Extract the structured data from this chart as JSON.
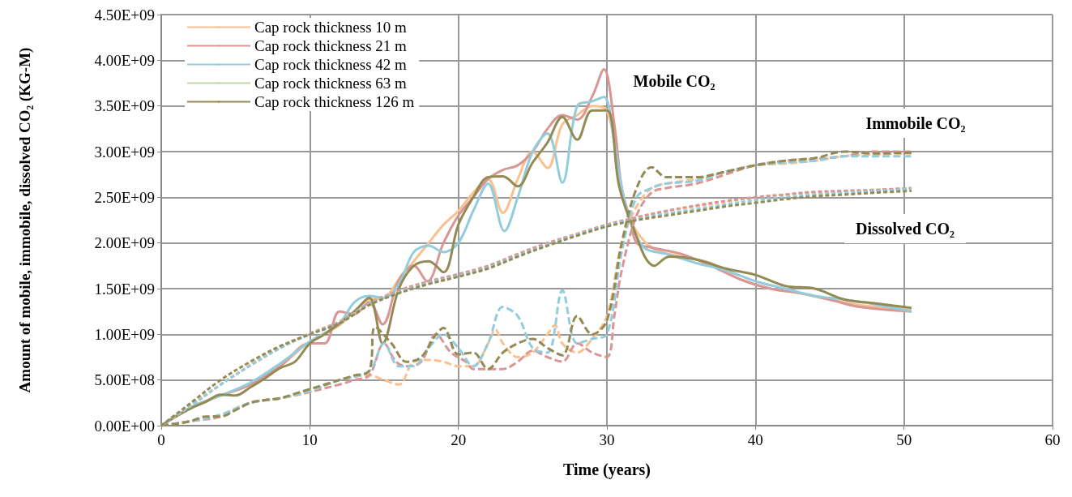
{
  "chart_data": {
    "type": "line",
    "xlabel": "Time (years)",
    "ylabel": "Amount of mobile, immobile, dissolved CO₂ (KG-M)",
    "xlim": [
      0,
      60
    ],
    "xticks": [
      0,
      10,
      20,
      30,
      40,
      50,
      60
    ],
    "ylim": [
      0,
      4500000000.0
    ],
    "yticks": [
      {
        "value": 0,
        "label": "0.00E+00"
      },
      {
        "value": 500000000.0,
        "label": "5.00E+08"
      },
      {
        "value": 1000000000.0,
        "label": "1.00E+09"
      },
      {
        "value": 1500000000.0,
        "label": "1.50E+09"
      },
      {
        "value": 2000000000.0,
        "label": "2.00E+09"
      },
      {
        "value": 2500000000.0,
        "label": "2.50E+09"
      },
      {
        "value": 3000000000.0,
        "label": "3.00E+09"
      },
      {
        "value": 3500000000.0,
        "label": "3.50E+09"
      },
      {
        "value": 4000000000.0,
        "label": "4.00E+09"
      },
      {
        "value": 4500000000.0,
        "label": "4.50E+09"
      }
    ],
    "grid": true,
    "legend": "top left",
    "marker": "none",
    "annotations": [
      "Mobile CO₂",
      "Immobile CO₂",
      "Dissolved CO₂"
    ],
    "series": [
      {
        "name": "Cap rock thickness 10 m",
        "color": "#fac090",
        "line_style": "solid",
        "x": [
          0,
          2,
          4,
          6,
          8,
          10,
          12,
          14,
          15,
          16,
          17,
          18,
          19,
          20,
          21,
          22,
          23,
          24,
          25,
          26,
          27,
          28,
          29,
          30,
          31,
          31.6,
          33,
          35,
          37,
          39,
          41,
          43,
          45,
          47,
          50.5
        ],
        "values": [
          0,
          200000000.0,
          330000000.0,
          450000000.0,
          650000000.0,
          920000000.0,
          1100000000.0,
          1380000000.0,
          1400000000.0,
          1600000000.0,
          1800000000.0,
          2000000000.0,
          2200000000.0,
          2350000000.0,
          2550000000.0,
          2700000000.0,
          2330000000.0,
          2700000000.0,
          3000000000.0,
          2820000000.0,
          3300000000.0,
          3400000000.0,
          3500000000.0,
          3450000000.0,
          2600000000.0,
          2240000000.0,
          1950000000.0,
          1850000000.0,
          1780000000.0,
          1600000000.0,
          1500000000.0,
          1450000000.0,
          1380000000.0,
          1320000000.0,
          1270000000.0
        ]
      },
      {
        "name": "Cap rock thickness 21 m",
        "color": "#d99694",
        "line_style": "solid",
        "x": [
          0,
          2,
          4,
          6,
          8,
          10,
          11,
          12,
          13,
          14,
          14.9,
          16,
          17,
          17.9,
          19,
          20,
          21,
          22,
          23,
          24,
          25,
          26,
          27,
          28,
          29,
          29.8,
          30.5,
          31,
          31.6,
          32,
          33,
          35,
          37,
          39,
          41,
          43,
          45,
          47,
          50.5
        ],
        "values": [
          0,
          200000000.0,
          330000000.0,
          450000000.0,
          650000000.0,
          900000000.0,
          900000000.0,
          1250000000.0,
          1220000000.0,
          1350000000.0,
          1110000000.0,
          1600000000.0,
          1750000000.0,
          1580000000.0,
          2000000000.0,
          2300000000.0,
          2500000000.0,
          2700000000.0,
          2800000000.0,
          2850000000.0,
          3000000000.0,
          3250000000.0,
          3400000000.0,
          3350000000.0,
          3600000000.0,
          3900000000.0,
          3300000000.0,
          2600000000.0,
          2240000000.0,
          2000000000.0,
          1950000000.0,
          1880000000.0,
          1750000000.0,
          1600000000.0,
          1500000000.0,
          1450000000.0,
          1380000000.0,
          1300000000.0,
          1250000000.0
        ]
      },
      {
        "name": "Cap rock thickness 42 m",
        "color": "#93cddd",
        "line_style": "solid",
        "x": [
          0,
          2,
          4,
          6,
          8,
          10,
          12,
          13,
          14,
          15,
          16,
          17,
          18,
          19,
          20,
          21,
          22,
          23.1,
          24,
          25,
          26,
          27,
          28,
          29,
          29.8,
          30.5,
          31,
          31.6,
          32.5,
          34,
          36,
          38,
          40,
          42,
          44,
          46,
          48,
          50.5
        ],
        "values": [
          0,
          200000000.0,
          330000000.0,
          470000000.0,
          680000000.0,
          920000000.0,
          1120000000.0,
          1350000000.0,
          1420000000.0,
          1400000000.0,
          1550000000.0,
          1900000000.0,
          1970000000.0,
          1900000000.0,
          2000000000.0,
          2350000000.0,
          2650000000.0,
          2130000000.0,
          2500000000.0,
          3000000000.0,
          3200000000.0,
          2660000000.0,
          3500000000.0,
          3550000000.0,
          3600000000.0,
          3100000000.0,
          2600000000.0,
          2240000000.0,
          1950000000.0,
          1880000000.0,
          1780000000.0,
          1700000000.0,
          1580000000.0,
          1500000000.0,
          1420000000.0,
          1380000000.0,
          1330000000.0,
          1250000000.0
        ]
      },
      {
        "name": "Cap rock thickness 63 m",
        "color": "#c3d69b",
        "line_style": "solid"
      },
      {
        "name": "Cap rock thickness 126 m",
        "color": "#948a54",
        "line_style": "solid",
        "x": [
          0,
          1,
          2,
          3,
          4,
          5,
          6,
          7,
          8,
          9,
          10,
          11,
          12,
          13,
          14,
          14.9,
          16,
          17,
          18,
          19,
          20,
          21,
          22,
          23,
          24,
          25,
          26,
          27,
          28,
          29,
          30,
          30.8,
          31.6,
          33.2,
          34.2,
          36,
          38,
          40,
          42,
          44,
          46,
          48,
          50.5
        ],
        "values": [
          0,
          100000000.0,
          190000000.0,
          260000000.0,
          340000000.0,
          330000000.0,
          420000000.0,
          520000000.0,
          630000000.0,
          700000000.0,
          900000000.0,
          1000000000.0,
          1120000000.0,
          1250000000.0,
          1400000000.0,
          900000000.0,
          1500000000.0,
          1750000000.0,
          1800000000.0,
          1680000000.0,
          2200000000.0,
          2500000000.0,
          2720000000.0,
          2730000000.0,
          2620000000.0,
          2880000000.0,
          3100000000.0,
          3380000000.0,
          3130000000.0,
          3450000000.0,
          3450000000.0,
          2640000000.0,
          2240000000.0,
          1750000000.0,
          1850000000.0,
          1820000000.0,
          1720000000.0,
          1650000000.0,
          1530000000.0,
          1500000000.0,
          1380000000.0,
          1340000000.0,
          1290000000.0
        ]
      },
      {
        "color": "#fac090",
        "line_style": "dashed",
        "x": [
          0,
          2,
          4,
          6,
          8,
          10,
          12,
          14,
          15,
          16,
          17,
          18,
          19,
          20,
          21,
          22,
          22.5,
          23,
          24,
          25,
          26,
          26.5,
          27,
          28,
          29,
          30,
          31,
          32,
          33,
          34,
          36,
          38,
          40,
          42,
          44,
          46,
          48,
          50.5
        ],
        "values": [
          0,
          50000000.0,
          120000000.0,
          250000000.0,
          300000000.0,
          370000000.0,
          500000000.0,
          550000000.0,
          500000000.0,
          450000000.0,
          700000000.0,
          720000000.0,
          700000000.0,
          650000000.0,
          650000000.0,
          900000000.0,
          1050000000.0,
          900000000.0,
          750000000.0,
          800000000.0,
          1000000000.0,
          1100000000.0,
          900000000.0,
          800000000.0,
          950000000.0,
          1200000000.0,
          2000000000.0,
          2400000000.0,
          2600000000.0,
          2650000000.0,
          2700000000.0,
          2780000000.0,
          2850000000.0,
          2870000000.0,
          2900000000.0,
          2950000000.0,
          2970000000.0,
          2980000000.0
        ]
      },
      {
        "color": "#d99694",
        "line_style": "dashed",
        "x": [
          0,
          2,
          4,
          6,
          8,
          10,
          12,
          13,
          14,
          15,
          15.8,
          16.5,
          17.5,
          18.5,
          19.5,
          20.5,
          21,
          22,
          23,
          24,
          25,
          26,
          27,
          28,
          29,
          30,
          30.5,
          31,
          32,
          33,
          34,
          36,
          38,
          40,
          42,
          44,
          46,
          48,
          50.5
        ],
        "values": [
          0,
          50000000.0,
          100000000.0,
          250000000.0,
          300000000.0,
          370000000.0,
          450000000.0,
          500000000.0,
          550000000.0,
          900000000.0,
          700000000.0,
          650000000.0,
          700000000.0,
          1000000000.0,
          800000000.0,
          700000000.0,
          620000000.0,
          620000000.0,
          620000000.0,
          700000000.0,
          820000000.0,
          750000000.0,
          700000000.0,
          900000000.0,
          800000000.0,
          750000000.0,
          1200000000.0,
          1700000000.0,
          2300000000.0,
          2550000000.0,
          2600000000.0,
          2650000000.0,
          2750000000.0,
          2850000000.0,
          2900000000.0,
          2920000000.0,
          2950000000.0,
          3000000000.0,
          3000000000.0
        ]
      },
      {
        "color": "#93cddd",
        "line_style": "dashed",
        "x": [
          0,
          2,
          4,
          6,
          8,
          10,
          12,
          14,
          15,
          16,
          17,
          18,
          19,
          20,
          21,
          22,
          23,
          24,
          25,
          26,
          27,
          28,
          29,
          30,
          31,
          32,
          33,
          34,
          36,
          38,
          40,
          42,
          44,
          46,
          48,
          50.5
        ],
        "values": [
          0,
          50000000.0,
          120000000.0,
          250000000.0,
          300000000.0,
          380000000.0,
          500000000.0,
          600000000.0,
          900000000.0,
          650000000.0,
          650000000.0,
          850000000.0,
          1000000000.0,
          850000000.0,
          650000000.0,
          900000000.0,
          1300000000.0,
          1200000000.0,
          850000000.0,
          800000000.0,
          1480000000.0,
          900000000.0,
          950000000.0,
          1000000000.0,
          1900000000.0,
          2500000000.0,
          2600000000.0,
          2650000000.0,
          2680000000.0,
          2780000000.0,
          2850000000.0,
          2880000000.0,
          2900000000.0,
          2950000000.0,
          2950000000.0,
          2950000000.0
        ]
      },
      {
        "color": "#948a54",
        "line_style": "dashed",
        "x": [
          0,
          1,
          2,
          3,
          4,
          5,
          6,
          7,
          8,
          9,
          10,
          11,
          12,
          13,
          14,
          14.4,
          15.5,
          16.5,
          17.5,
          18.5,
          19,
          20,
          21,
          22,
          23,
          24,
          25,
          26,
          27,
          28,
          29,
          30,
          31,
          32,
          33,
          34,
          36,
          38,
          40,
          42,
          44,
          46,
          48,
          50.5
        ],
        "values": [
          0,
          20000000.0,
          50000000.0,
          100000000.0,
          100000000.0,
          170000000.0,
          250000000.0,
          280000000.0,
          300000000.0,
          350000000.0,
          400000000.0,
          450000000.0,
          500000000.0,
          550000000.0,
          600000000.0,
          1080000000.0,
          900000000.0,
          700000000.0,
          750000000.0,
          1000000000.0,
          1070000000.0,
          780000000.0,
          800000000.0,
          620000000.0,
          800000000.0,
          900000000.0,
          950000000.0,
          850000000.0,
          770000000.0,
          1200000000.0,
          1000000000.0,
          1150000000.0,
          2000000000.0,
          2600000000.0,
          2830000000.0,
          2720000000.0,
          2720000000.0,
          2780000000.0,
          2850000000.0,
          2900000000.0,
          2930000000.0,
          3000000000.0,
          2980000000.0,
          2990000000.0
        ]
      },
      {
        "color": "#fac090",
        "line_style": "dotted",
        "x": [
          0,
          2,
          4,
          6,
          8,
          10,
          12,
          14,
          16,
          18,
          20,
          22,
          24,
          26,
          28,
          30,
          32,
          34,
          36,
          38,
          40,
          42,
          44,
          46,
          48,
          50.5
        ],
        "values": [
          0,
          220000000.0,
          450000000.0,
          660000000.0,
          850000000.0,
          1000000000.0,
          1130000000.0,
          1330000000.0,
          1470000000.0,
          1570000000.0,
          1650000000.0,
          1740000000.0,
          1870000000.0,
          1990000000.0,
          2100000000.0,
          2200000000.0,
          2280000000.0,
          2350000000.0,
          2400000000.0,
          2450000000.0,
          2500000000.0,
          2530000000.0,
          2550000000.0,
          2570000000.0,
          2580000000.0,
          2600000000.0
        ]
      },
      {
        "color": "#d99694",
        "line_style": "dotted",
        "x": [
          0,
          2,
          4,
          6,
          8,
          10,
          12,
          14,
          16,
          18,
          20,
          22,
          24,
          26,
          28,
          30,
          32,
          34,
          36,
          38,
          40,
          42,
          44,
          46,
          48,
          50.5
        ],
        "values": [
          0,
          220000000.0,
          450000000.0,
          660000000.0,
          850000000.0,
          1010000000.0,
          1140000000.0,
          1340000000.0,
          1480000000.0,
          1580000000.0,
          1660000000.0,
          1750000000.0,
          1880000000.0,
          2000000000.0,
          2100000000.0,
          2200000000.0,
          2280000000.0,
          2350000000.0,
          2410000000.0,
          2460000000.0,
          2500000000.0,
          2530000000.0,
          2560000000.0,
          2570000000.0,
          2580000000.0,
          2600000000.0
        ]
      },
      {
        "color": "#93cddd",
        "line_style": "dotted",
        "x": [
          0,
          2,
          4,
          6,
          8,
          10,
          12,
          14,
          16,
          18,
          20,
          22,
          24,
          26,
          28,
          30,
          32,
          34,
          36,
          38,
          40,
          42,
          44,
          46,
          48,
          50.5
        ],
        "values": [
          0,
          220000000.0,
          450000000.0,
          660000000.0,
          850000000.0,
          1000000000.0,
          1130000000.0,
          1330000000.0,
          1460000000.0,
          1560000000.0,
          1640000000.0,
          1730000000.0,
          1860000000.0,
          1980000000.0,
          2090000000.0,
          2190000000.0,
          2260000000.0,
          2320000000.0,
          2370000000.0,
          2420000000.0,
          2470000000.0,
          2500000000.0,
          2530000000.0,
          2550000000.0,
          2570000000.0,
          2590000000.0
        ]
      },
      {
        "color": "#948a54",
        "line_style": "dotted",
        "x": [
          0,
          2,
          4,
          6,
          8,
          10,
          12,
          14,
          16,
          18,
          20,
          22,
          24,
          26,
          28,
          30,
          32,
          34,
          36,
          38,
          40,
          42,
          44,
          46,
          48,
          50.5
        ],
        "values": [
          0,
          250000000.0,
          500000000.0,
          700000000.0,
          870000000.0,
          1000000000.0,
          1120000000.0,
          1320000000.0,
          1450000000.0,
          1550000000.0,
          1630000000.0,
          1720000000.0,
          1850000000.0,
          1970000000.0,
          2080000000.0,
          2180000000.0,
          2250000000.0,
          2300000000.0,
          2350000000.0,
          2400000000.0,
          2440000000.0,
          2480000000.0,
          2510000000.0,
          2530000000.0,
          2550000000.0,
          2570000000.0
        ]
      }
    ]
  }
}
